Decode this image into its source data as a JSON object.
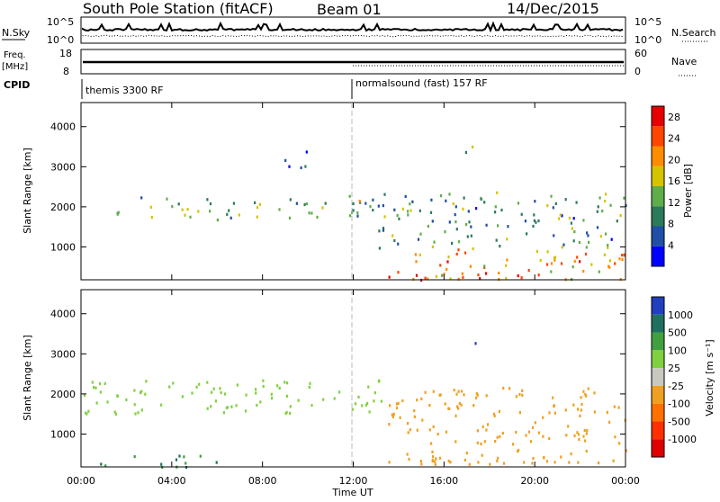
{
  "header": {
    "station": "South Pole Station (fitACF)",
    "beam": "Beam 01",
    "date": "14/Dec/2015"
  },
  "top_panels": {
    "nsky_label": "N.Sky",
    "nsky_ticks": [
      "10^5",
      "10^0"
    ],
    "nsearch_label": "N.Search",
    "nsearch_ticks": [
      "10^5",
      "10^0"
    ],
    "freq_label": "Freq.",
    "freq_unit": "[MHz]",
    "freq_ticks": [
      "18",
      "8"
    ],
    "nave_label": "Nave",
    "nave_ticks": [
      "60",
      "0"
    ],
    "cpid_label": "CPID",
    "cpid_segments": [
      {
        "text": "themis 3300 RF",
        "start": "00:00"
      },
      {
        "text": "normalsound (fast) 157 RF",
        "start": "12:00"
      }
    ]
  },
  "colors": {
    "power_scale": [
      "#0000ff",
      "#1f4fa6",
      "#2b7a5a",
      "#5fae4a",
      "#d4c400",
      "#ff8c00",
      "#ff4500",
      "#e60000"
    ],
    "velocity_scale": [
      "#2040c0",
      "#207060",
      "#40a040",
      "#80d040",
      "#c8c8c0",
      "#f0a020",
      "#ff7000",
      "#ff3000",
      "#e00000"
    ]
  },
  "x_axis": {
    "label": "Time UT",
    "ticks": [
      "00:00",
      "04:00",
      "08:00",
      "12:00",
      "16:00",
      "20:00",
      "00:00"
    ]
  },
  "chart_data": [
    {
      "type": "heatmap",
      "name": "power",
      "ylabel": "Slant Range [km]",
      "ylim": [
        180,
        4600
      ],
      "yticks": [
        "1000",
        "2000",
        "3000",
        "4000"
      ],
      "xlim_hours": [
        0,
        24
      ],
      "colorbar_label": "Power [dB]",
      "colorbar_ticks": [
        "4",
        "8",
        "12",
        "16",
        "20",
        "24",
        "28"
      ],
      "colorbar_range": [
        0,
        30
      ],
      "regions": [
        {
          "t": [
            1.5,
            14.5
          ],
          "r": [
            1700,
            2300
          ],
          "level": 12
        },
        {
          "t": [
            13.5,
            24.0
          ],
          "r": [
            200,
            1000
          ],
          "level": 20
        },
        {
          "t": [
            14.5,
            22.5
          ],
          "r": [
            200,
            400
          ],
          "level": 26
        },
        {
          "t": [
            16.8,
            17.4
          ],
          "r": [
            3200,
            3600
          ],
          "level": 14
        },
        {
          "t": [
            8.5,
            10.0
          ],
          "r": [
            3000,
            3500
          ],
          "level": 8
        },
        {
          "t": [
            13.0,
            24.0
          ],
          "r": [
            1000,
            2400
          ],
          "level": 10
        }
      ]
    },
    {
      "type": "heatmap",
      "name": "velocity",
      "ylabel": "Slant Range [km]",
      "ylim": [
        180,
        4600
      ],
      "yticks": [
        "1000",
        "2000",
        "3000",
        "4000"
      ],
      "xlim_hours": [
        0,
        24
      ],
      "colorbar_label": "Velocity [m s⁻¹]",
      "colorbar_ticks": [
        "1000",
        "500",
        "100",
        "25",
        "-25",
        "-100",
        "-500",
        "-1000"
      ],
      "colorbar_range": [
        -1000,
        1000
      ],
      "regions": [
        {
          "t": [
            0.0,
            13.5
          ],
          "r": [
            1500,
            2400
          ],
          "level": 0
        },
        {
          "t": [
            13.5,
            24.0
          ],
          "r": [
            300,
            2200
          ],
          "level": -200
        },
        {
          "t": [
            14.5,
            22.5
          ],
          "r": [
            250,
            500
          ],
          "level": -150
        },
        {
          "t": [
            17.0,
            17.4
          ],
          "r": [
            3200,
            3500
          ],
          "level": 1000
        },
        {
          "t": [
            0.0,
            6.0
          ],
          "r": [
            200,
            500
          ],
          "level": 100
        }
      ]
    }
  ]
}
